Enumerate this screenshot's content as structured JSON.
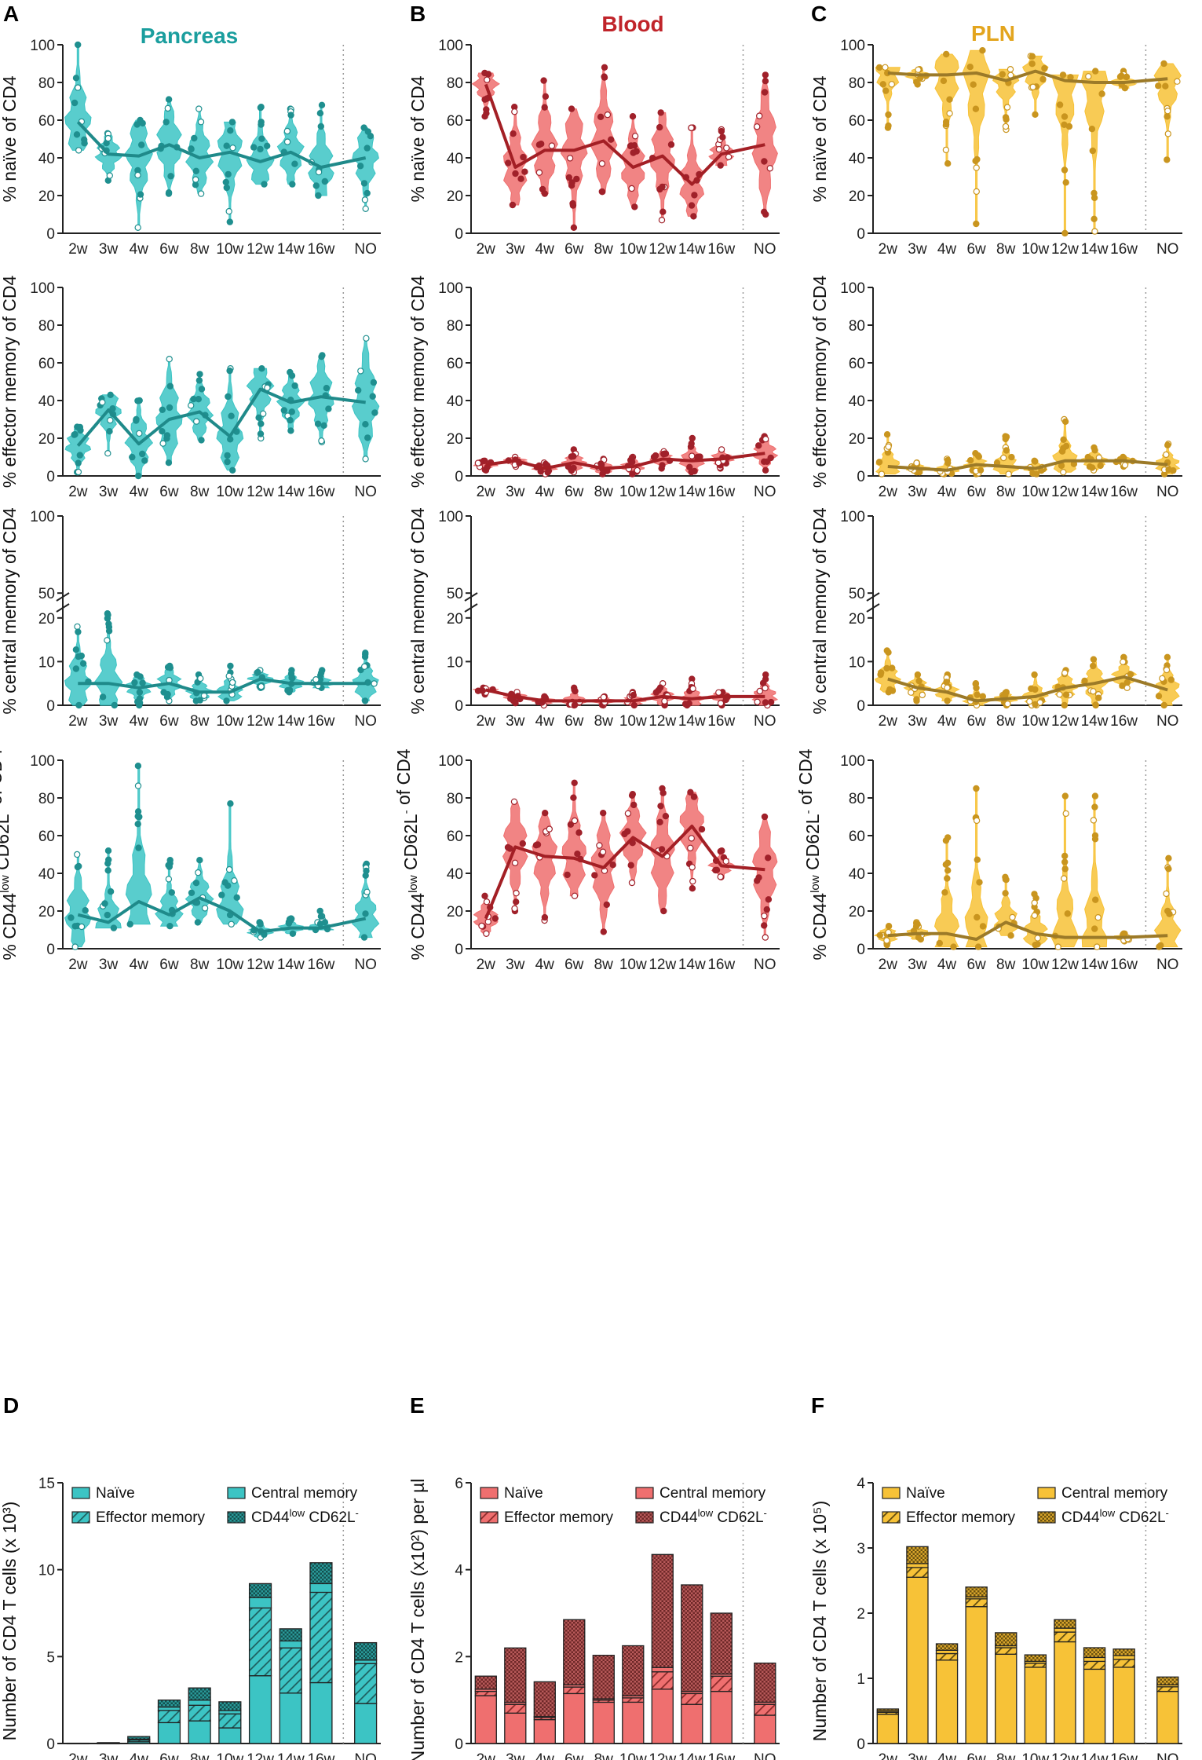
{
  "panel_labels": [
    "A",
    "B",
    "C",
    "D",
    "E",
    "F"
  ],
  "tissues": [
    {
      "name": "Pancreas",
      "color": "#1a9e9e",
      "fill": "#3cc4c4",
      "line": "#1f8a8a",
      "dot": "#1f8f8f"
    },
    {
      "name": "Blood",
      "color": "#c0242a",
      "fill": "#ef6f6f",
      "line": "#a31f25",
      "dot": "#a0212a"
    },
    {
      "name": "PLN",
      "color": "#e3a51e",
      "fill": "#f7c237",
      "line": "#9c7a28",
      "dot": "#c9951f"
    }
  ],
  "categories": [
    "2w",
    "3w",
    "4w",
    "6w",
    "8w",
    "10w",
    "12w",
    "14w",
    "16w",
    "NO"
  ],
  "row_ylabels": [
    "% naïve of CD4",
    "% effector memory of CD4",
    "% central memory of CD4",
    "% CD44low CD62L- of CD4"
  ],
  "cd44_label": {
    "pre": "% CD44",
    "sup1": "low",
    "mid": " CD62L",
    "sup2": "-",
    "post": " of CD4"
  },
  "bar_ylabels": [
    "Number of  CD4 T cells (x 10³)",
    "Number of  CD4 T cells (x10²) per µl",
    "Number of  CD4 T cells (x 10⁵)"
  ],
  "legend": {
    "naive": "Naïve",
    "effector": "Effector memory",
    "central": "Central memory",
    "cd44_pre": "CD44",
    "cd44_sup": "low",
    "cd44_mid": " CD62L",
    "cd44_sup2": "-"
  },
  "chart_data": [
    {
      "type": "violin",
      "panel": "A",
      "tissue": "Pancreas",
      "title": "Pancreas",
      "ylabel": "% naïve of CD4",
      "ylim": [
        0,
        100
      ],
      "yticks": [
        0,
        20,
        40,
        60,
        80,
        100
      ],
      "categories": [
        "2w",
        "3w",
        "4w",
        "6w",
        "8w",
        "10w",
        "12w",
        "14w",
        "16w",
        "NO"
      ],
      "median": [
        59,
        42,
        41,
        47,
        40,
        43,
        38,
        43,
        35,
        40
      ],
      "min": [
        44,
        28,
        3,
        21,
        21,
        6,
        26,
        26,
        20,
        13
      ],
      "max": [
        100,
        53,
        60,
        71,
        66,
        59,
        67,
        66,
        68,
        56
      ]
    },
    {
      "type": "violin",
      "panel": "B",
      "tissue": "Blood",
      "title": "Blood",
      "ylabel": "% naïve of CD4",
      "ylim": [
        0,
        100
      ],
      "yticks": [
        0,
        20,
        40,
        60,
        80,
        100
      ],
      "categories": [
        "2w",
        "3w",
        "4w",
        "6w",
        "8w",
        "10w",
        "12w",
        "14w",
        "16w",
        "NO"
      ],
      "median": [
        79,
        35,
        44,
        44,
        49,
        35,
        41,
        26,
        42,
        47
      ],
      "min": [
        62,
        15,
        21,
        3,
        22,
        14,
        7,
        9,
        36,
        10
      ],
      "max": [
        85,
        67,
        81,
        66,
        88,
        62,
        64,
        56,
        55,
        84
      ]
    },
    {
      "type": "violin",
      "panel": "C",
      "tissue": "PLN",
      "title": "PLN",
      "ylabel": "% naïve of CD4",
      "ylim": [
        0,
        100
      ],
      "yticks": [
        0,
        20,
        40,
        60,
        80,
        100
      ],
      "categories": [
        "2w",
        "3w",
        "4w",
        "6w",
        "8w",
        "10w",
        "12w",
        "14w",
        "16w",
        "NO"
      ],
      "median": [
        85,
        84,
        84,
        85,
        81,
        86,
        81,
        80,
        80,
        82
      ],
      "min": [
        56,
        79,
        37,
        5,
        55,
        63,
        0,
        1,
        77,
        39
      ],
      "max": [
        88,
        87,
        95,
        97,
        87,
        94,
        84,
        86,
        86,
        90
      ]
    },
    {
      "type": "violin",
      "panel": "A",
      "tissue": "Pancreas",
      "ylabel": "% effector memory of CD4",
      "ylim": [
        0,
        100
      ],
      "yticks": [
        0,
        20,
        40,
        60,
        80,
        100
      ],
      "categories": [
        "2w",
        "3w",
        "4w",
        "6w",
        "8w",
        "10w",
        "12w",
        "14w",
        "16w",
        "NO"
      ],
      "median": [
        16,
        35,
        17,
        30,
        34,
        21,
        46,
        39,
        42,
        39
      ],
      "min": [
        2,
        12,
        0,
        7,
        19,
        3,
        20,
        24,
        18,
        9
      ],
      "max": [
        26,
        43,
        40,
        62,
        54,
        57,
        57,
        55,
        64,
        73
      ]
    },
    {
      "type": "violin",
      "panel": "B",
      "tissue": "Blood",
      "ylabel": "% effector memory of CD4",
      "ylim": [
        0,
        100
      ],
      "yticks": [
        0,
        20,
        40,
        60,
        80,
        100
      ],
      "categories": [
        "2w",
        "3w",
        "4w",
        "6w",
        "8w",
        "10w",
        "12w",
        "14w",
        "16w",
        "NO"
      ],
      "median": [
        6,
        8,
        4,
        7,
        4,
        5,
        9,
        8,
        9,
        12
      ],
      "min": [
        3,
        5,
        1,
        2,
        1,
        1,
        4,
        2,
        4,
        3
      ],
      "max": [
        8,
        10,
        7,
        14,
        9,
        10,
        13,
        20,
        14,
        21
      ]
    },
    {
      "type": "violin",
      "panel": "C",
      "tissue": "PLN",
      "ylabel": "% effector memory of CD4",
      "ylim": [
        0,
        100
      ],
      "yticks": [
        0,
        20,
        40,
        60,
        80,
        100
      ],
      "categories": [
        "2w",
        "3w",
        "4w",
        "6w",
        "8w",
        "10w",
        "12w",
        "14w",
        "16w",
        "NO"
      ],
      "median": [
        5,
        4,
        3,
        6,
        5,
        4,
        8,
        8,
        8,
        6
      ],
      "min": [
        1,
        2,
        1,
        1,
        1,
        1,
        2,
        3,
        5,
        1
      ],
      "max": [
        22,
        7,
        9,
        12,
        21,
        8,
        30,
        15,
        10,
        17
      ]
    },
    {
      "type": "violin",
      "panel": "A",
      "tissue": "Pancreas",
      "ylabel": "% central memory of CD4",
      "ylim_broken": [
        0,
        25,
        45,
        100
      ],
      "yticks": [
        0,
        10,
        20,
        50,
        100
      ],
      "categories": [
        "2w",
        "3w",
        "4w",
        "6w",
        "8w",
        "10w",
        "12w",
        "14w",
        "16w",
        "NO"
      ],
      "median": [
        5,
        5,
        4,
        5,
        3,
        3,
        6,
        5,
        5,
        5
      ],
      "min": [
        0,
        0,
        0,
        1,
        1,
        1,
        4,
        3,
        4,
        1
      ],
      "max": [
        18,
        21,
        7,
        9,
        7,
        9,
        8,
        8,
        8,
        12
      ]
    },
    {
      "type": "violin",
      "panel": "B",
      "tissue": "Blood",
      "ylabel": "% central memory of CD4",
      "ylim_broken": [
        0,
        25,
        45,
        100
      ],
      "yticks": [
        0,
        10,
        20,
        50,
        100
      ],
      "categories": [
        "2w",
        "3w",
        "4w",
        "6w",
        "8w",
        "10w",
        "12w",
        "14w",
        "16w",
        "NO"
      ],
      "median": [
        3.5,
        2,
        1,
        1,
        1,
        1,
        2,
        1.5,
        2,
        2
      ],
      "min": [
        2.5,
        0.5,
        0,
        0,
        0,
        0,
        0,
        0,
        0,
        0
      ],
      "max": [
        4,
        3,
        2,
        4,
        2,
        3,
        5,
        6,
        3,
        7
      ]
    },
    {
      "type": "violin",
      "panel": "C",
      "tissue": "PLN",
      "ylabel": "% central memory of CD4",
      "ylim_broken": [
        0,
        25,
        45,
        100
      ],
      "yticks": [
        0,
        10,
        20,
        50,
        100
      ],
      "categories": [
        "2w",
        "3w",
        "4w",
        "6w",
        "8w",
        "10w",
        "12w",
        "14w",
        "16w",
        "NO"
      ],
      "median": [
        6,
        4,
        3,
        1,
        1.5,
        2,
        4,
        5,
        6.5,
        3.5
      ],
      "min": [
        3,
        1,
        1,
        0,
        0,
        0,
        0,
        0,
        4,
        0
      ],
      "max": [
        12.5,
        7,
        7,
        5,
        3,
        7,
        8,
        10.5,
        11,
        11
      ]
    },
    {
      "type": "violin",
      "panel": "A",
      "tissue": "Pancreas",
      "ylabel": "% CD44low CD62L- of CD4",
      "ylim": [
        0,
        100
      ],
      "yticks": [
        0,
        20,
        40,
        60,
        80,
        100
      ],
      "categories": [
        "2w",
        "3w",
        "4w",
        "6w",
        "8w",
        "10w",
        "12w",
        "14w",
        "16w",
        "NO"
      ],
      "median": [
        18,
        14,
        25,
        18,
        27,
        20,
        9,
        11,
        11,
        16
      ],
      "min": [
        1,
        11,
        13,
        12,
        14,
        13,
        6,
        8,
        10,
        6
      ],
      "max": [
        50,
        52,
        97,
        47,
        47,
        77,
        14,
        16,
        20,
        45
      ]
    },
    {
      "type": "violin",
      "panel": "B",
      "tissue": "Blood",
      "ylabel": "% CD44low CD62L- of CD4",
      "ylim": [
        0,
        100
      ],
      "yticks": [
        0,
        20,
        40,
        60,
        80,
        100
      ],
      "categories": [
        "2w",
        "3w",
        "4w",
        "6w",
        "8w",
        "10w",
        "12w",
        "14w",
        "16w",
        "NO"
      ],
      "median": [
        16,
        54,
        49,
        48,
        43,
        59,
        49,
        65,
        44,
        42
      ],
      "min": [
        8,
        20,
        15,
        28,
        9,
        35,
        20,
        32,
        38,
        6
      ],
      "max": [
        28,
        78,
        72,
        88,
        72,
        82,
        85,
        83,
        52,
        70
      ]
    },
    {
      "type": "violin",
      "panel": "C",
      "tissue": "PLN",
      "ylabel": "% CD44low CD62L- of CD4",
      "ylim": [
        0,
        100
      ],
      "yticks": [
        0,
        20,
        40,
        60,
        80,
        100
      ],
      "categories": [
        "2w",
        "3w",
        "4w",
        "6w",
        "8w",
        "10w",
        "12w",
        "14w",
        "16w",
        "NO"
      ],
      "median": [
        7,
        8,
        8,
        5,
        14,
        8,
        6,
        6,
        6,
        7
      ],
      "min": [
        2,
        5,
        1,
        1,
        7,
        2,
        1,
        1,
        4,
        1
      ],
      "max": [
        12,
        14,
        59,
        85,
        38,
        29,
        81,
        81,
        8,
        48
      ]
    },
    {
      "type": "bar",
      "stacked": true,
      "panel": "D",
      "tissue": "Pancreas",
      "ylabel": "Number of  CD4 T cells (x 10³)",
      "ylim": [
        0,
        15
      ],
      "yticks": [
        0,
        5,
        10,
        15
      ],
      "categories": [
        "2w",
        "3w",
        "4w",
        "6w",
        "8w",
        "10w",
        "12w",
        "14w",
        "16w",
        "NO"
      ],
      "series": [
        {
          "name": "Naïve",
          "values": [
            0.02,
            0.02,
            0.1,
            1.2,
            1.3,
            0.9,
            3.9,
            2.9,
            3.5,
            2.3
          ]
        },
        {
          "name": "Effector memory",
          "values": [
            0,
            0.02,
            0.1,
            0.7,
            0.9,
            0.8,
            3.9,
            2.6,
            5.2,
            2.3
          ]
        },
        {
          "name": "Central memory",
          "values": [
            0,
            0,
            0.05,
            0.2,
            0.3,
            0.2,
            0.6,
            0.4,
            0.5,
            0.2
          ]
        },
        {
          "name": "CD44low CD62L-",
          "values": [
            0,
            0.01,
            0.15,
            0.4,
            0.7,
            0.5,
            0.8,
            0.7,
            1.2,
            1.0
          ]
        }
      ]
    },
    {
      "type": "bar",
      "stacked": true,
      "panel": "E",
      "tissue": "Blood",
      "ylabel": "Number of  CD4 T cells (x10²) per µl",
      "ylim": [
        0,
        6
      ],
      "yticks": [
        0,
        2,
        4,
        6
      ],
      "categories": [
        "2w",
        "3w",
        "4w",
        "6w",
        "8w",
        "10w",
        "12w",
        "14w",
        "16w",
        "NO"
      ],
      "series": [
        {
          "name": "Naïve",
          "values": [
            1.1,
            0.7,
            0.55,
            1.15,
            0.95,
            0.95,
            1.25,
            0.9,
            1.2,
            0.65
          ]
        },
        {
          "name": "Effector memory",
          "values": [
            0.1,
            0.2,
            0.05,
            0.15,
            0.05,
            0.1,
            0.4,
            0.25,
            0.35,
            0.25
          ]
        },
        {
          "name": "Central memory",
          "values": [
            0.05,
            0.05,
            0.02,
            0.05,
            0.03,
            0.05,
            0.1,
            0.05,
            0.05,
            0.05
          ]
        },
        {
          "name": "CD44low CD62L-",
          "values": [
            0.3,
            1.25,
            0.8,
            1.5,
            1.0,
            1.15,
            2.6,
            2.45,
            1.4,
            0.9
          ]
        }
      ]
    },
    {
      "type": "bar",
      "stacked": true,
      "panel": "F",
      "tissue": "PLN",
      "ylabel": "Number of  CD4 T cells (x 10⁵)",
      "ylim": [
        0,
        4
      ],
      "yticks": [
        0,
        1,
        2,
        3,
        4
      ],
      "categories": [
        "2w",
        "3w",
        "4w",
        "6w",
        "8w",
        "10w",
        "12w",
        "14w",
        "16w",
        "NO"
      ],
      "series": [
        {
          "name": "Naïve",
          "values": [
            0.45,
            2.55,
            1.28,
            2.1,
            1.37,
            1.17,
            1.56,
            1.14,
            1.17,
            0.8
          ]
        },
        {
          "name": "Effector memory",
          "values": [
            0.03,
            0.15,
            0.1,
            0.12,
            0.1,
            0.06,
            0.15,
            0.12,
            0.12,
            0.07
          ]
        },
        {
          "name": "Central memory",
          "values": [
            0.02,
            0.06,
            0.05,
            0.03,
            0.03,
            0.03,
            0.06,
            0.06,
            0.06,
            0.03
          ]
        },
        {
          "name": "CD44low CD62L-",
          "values": [
            0.03,
            0.26,
            0.1,
            0.15,
            0.2,
            0.1,
            0.13,
            0.15,
            0.1,
            0.12
          ]
        }
      ]
    }
  ]
}
